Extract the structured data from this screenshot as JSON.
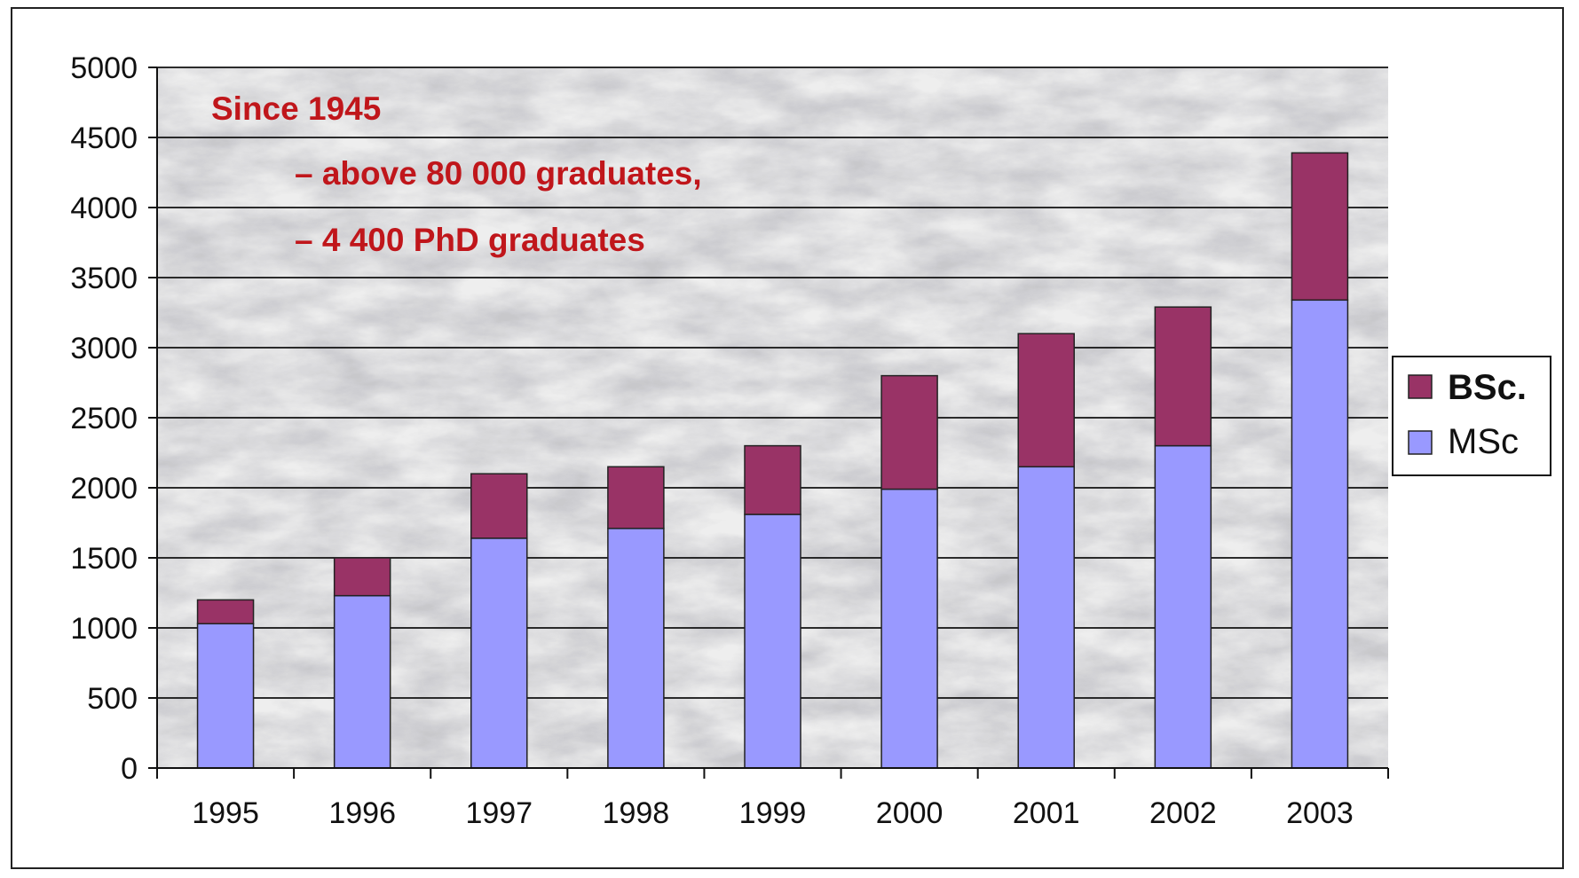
{
  "chart_data": {
    "type": "bar",
    "stacked": true,
    "categories": [
      "1995",
      "1996",
      "1997",
      "1998",
      "1999",
      "2000",
      "2001",
      "2002",
      "2003"
    ],
    "series": [
      {
        "name": "MSc",
        "values": [
          1030,
          1230,
          1640,
          1710,
          1810,
          1990,
          2150,
          2300,
          3340
        ]
      },
      {
        "name": "BSc.",
        "values": [
          170,
          270,
          460,
          440,
          490,
          810,
          950,
          990,
          1050
        ]
      }
    ],
    "ylim": [
      0,
      5000
    ],
    "yticks": [
      0,
      500,
      1000,
      1500,
      2000,
      2500,
      3000,
      3500,
      4000,
      4500,
      5000
    ],
    "grid": true,
    "legend_position": "right",
    "legend_order": [
      "BSc.",
      "MSc"
    ],
    "annotations": [
      "Since 1945",
      "– above 80 000 graduates,",
      "– 4 400 PhD graduates"
    ],
    "colors": {
      "MSc": "#9999ff",
      "BSc.": "#993366",
      "annotation": "#c0161b",
      "grid": "#111111"
    }
  }
}
